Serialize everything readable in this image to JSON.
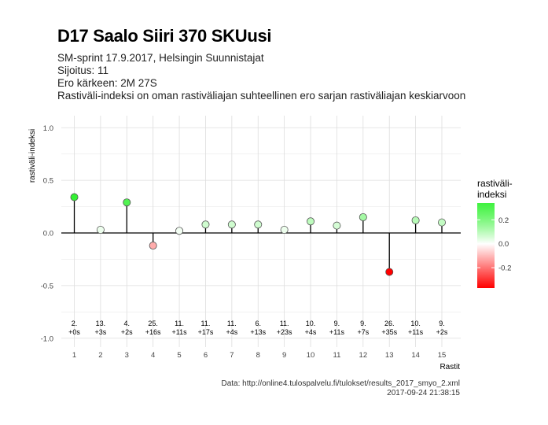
{
  "header": {
    "title": "D17 Saalo Siiri 370 SKUusi",
    "line1": "SM-sprint 17.9.2017, Helsingin Suunnistajat",
    "line2": "Sijoitus: 11",
    "line3": "Ero kärkeen: 2M 27S",
    "line4": "Rastiväli-indeksi on oman rastiväliajan suhteellinen ero sarjan rastiväliajan keskiarvoon"
  },
  "caption": {
    "source": "Data: http://online4.tulospalvelu.fi/tulokset/results_2017_smyo_2.xml",
    "timestamp": "2017-09-24 21:38:15"
  },
  "colors": {
    "negative": "#ff0000",
    "zero": "#ffffff",
    "positive": "#00ee00",
    "grid": "#dddddd"
  },
  "chart_data": {
    "type": "scatter",
    "style": "lollipop",
    "xlabel": "Rastit",
    "ylabel": "rastiväli-indeksi",
    "ylim": [
      -1.0,
      1.0
    ],
    "yticks": [
      "-1.0",
      "-0.5",
      "0.0",
      "0.5",
      "1.0"
    ],
    "grid": true,
    "legend": {
      "title": "rastiväli-\nindeksi",
      "position": "right",
      "ticks": [
        0.2,
        0.0,
        -0.2
      ],
      "tick_labels": [
        "0.2",
        "0.0",
        "-0.2"
      ],
      "range": [
        -0.37,
        0.34
      ]
    },
    "points": [
      {
        "x": "1",
        "value": 0.34,
        "rank": "2.",
        "split": "+0s"
      },
      {
        "x": "2",
        "value": 0.03,
        "rank": "13.",
        "split": "+3s"
      },
      {
        "x": "3",
        "value": 0.29,
        "rank": "4.",
        "split": "+2s"
      },
      {
        "x": "4",
        "value": -0.12,
        "rank": "25.",
        "split": "+16s"
      },
      {
        "x": "5",
        "value": 0.02,
        "rank": "11.",
        "split": "+11s"
      },
      {
        "x": "6",
        "value": 0.08,
        "rank": "11.",
        "split": "+17s"
      },
      {
        "x": "7",
        "value": 0.08,
        "rank": "11.",
        "split": "+4s"
      },
      {
        "x": "8",
        "value": 0.08,
        "rank": "6.",
        "split": "+13s"
      },
      {
        "x": "9",
        "value": 0.03,
        "rank": "11.",
        "split": "+23s"
      },
      {
        "x": "10",
        "value": 0.11,
        "rank": "10.",
        "split": "+4s"
      },
      {
        "x": "11",
        "value": 0.07,
        "rank": "9.",
        "split": "+11s"
      },
      {
        "x": "12",
        "value": 0.15,
        "rank": "9.",
        "split": "+7s"
      },
      {
        "x": "13",
        "value": -0.37,
        "rank": "26.",
        "split": "+35s"
      },
      {
        "x": "14",
        "value": 0.12,
        "rank": "10.",
        "split": "+11s"
      },
      {
        "x": "15",
        "value": 0.1,
        "rank": "9.",
        "split": "+2s"
      }
    ]
  }
}
